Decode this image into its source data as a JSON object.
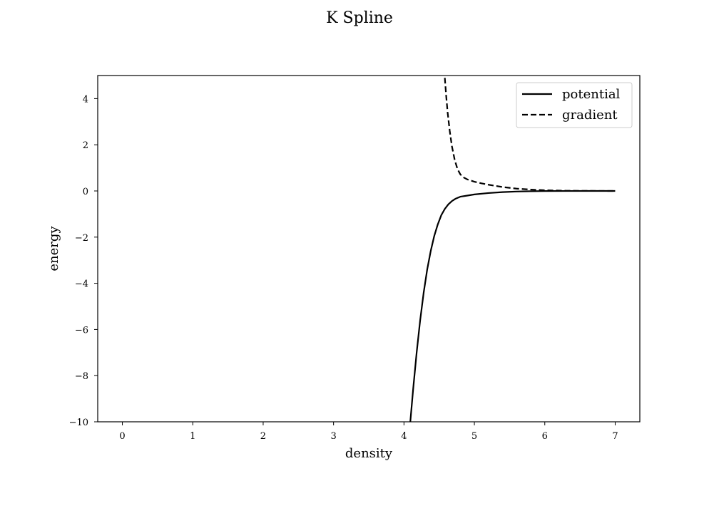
{
  "chart_data": {
    "type": "line",
    "title": "K Spline",
    "xlabel": "density",
    "ylabel": "energy",
    "xlim": [
      -0.35,
      7.35
    ],
    "ylim": [
      -10,
      5
    ],
    "xticks": [
      0,
      1,
      2,
      3,
      4,
      5,
      6,
      7
    ],
    "yticks": [
      -10,
      -8,
      -6,
      -4,
      -2,
      0,
      2,
      4
    ],
    "xtick_labels": [
      "0",
      "1",
      "2",
      "3",
      "4",
      "5",
      "6",
      "7"
    ],
    "ytick_labels": [
      "−10",
      "−8",
      "−6",
      "−4",
      "−2",
      "0",
      "2",
      "4"
    ],
    "grid": false,
    "legend_position": "top-right",
    "series": [
      {
        "name": "potential",
        "style": "solid",
        "color": "#000000",
        "x": [
          4.09,
          4.13,
          4.18,
          4.23,
          4.28,
          4.33,
          4.38,
          4.43,
          4.48,
          4.53,
          4.58,
          4.63,
          4.68,
          4.73,
          4.8,
          4.9,
          5.0,
          5.2,
          5.4,
          5.6,
          5.8,
          6.0,
          6.3,
          6.6,
          7.0
        ],
        "y": [
          -10.0,
          -8.6,
          -7.0,
          -5.6,
          -4.4,
          -3.4,
          -2.6,
          -1.95,
          -1.45,
          -1.05,
          -0.78,
          -0.58,
          -0.44,
          -0.34,
          -0.25,
          -0.2,
          -0.15,
          -0.09,
          -0.05,
          -0.025,
          -0.012,
          -0.005,
          -0.002,
          0.0,
          0.0
        ]
      },
      {
        "name": "gradient",
        "style": "dashed",
        "color": "#000000",
        "x": [
          4.58,
          4.6,
          4.62,
          4.65,
          4.68,
          4.72,
          4.76,
          4.8,
          4.85,
          4.9,
          5.0,
          5.1,
          5.2,
          5.4,
          5.6,
          5.8,
          6.0,
          6.3,
          6.6,
          7.0
        ],
        "y": [
          4.9,
          4.1,
          3.4,
          2.6,
          1.95,
          1.35,
          0.95,
          0.72,
          0.58,
          0.5,
          0.4,
          0.33,
          0.27,
          0.17,
          0.1,
          0.06,
          0.03,
          0.01,
          0.003,
          0.0
        ]
      }
    ]
  }
}
